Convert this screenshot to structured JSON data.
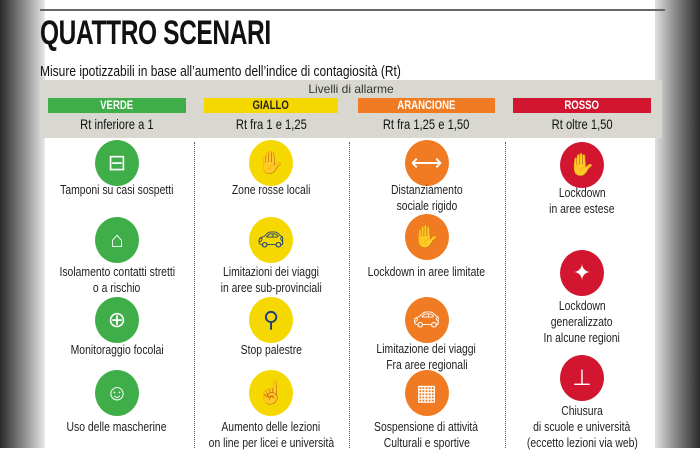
{
  "title": "QUATTRO SCENARI",
  "subtitle": "Misure ipotizzabili in base all’aumento dell’indice di contagiosità (Rt)",
  "levels_label": "Livelli di allarme",
  "colors": {
    "verde": "#3fae49",
    "giallo": "#f5d800",
    "arancione": "#f07b22",
    "rosso": "#d2162f"
  },
  "columns": [
    {
      "name": "VERDE",
      "rt": "Rt inferiore a 1",
      "items": [
        {
          "icon": "syringe-icon",
          "l1": "Tamponi su casi sospetti",
          "l2": ""
        },
        {
          "icon": "home-isolation-icon",
          "l1": "Isolamento contatti stretti",
          "l2": "o a rischio"
        },
        {
          "icon": "target-icon",
          "l1": "Monitoraggio focolai",
          "l2": ""
        },
        {
          "icon": "face-mask-icon",
          "l1": "Uso delle mascherine",
          "l2": ""
        }
      ]
    },
    {
      "name": "GIALLO",
      "rt": "Rt fra 1 e 1,25",
      "items": [
        {
          "icon": "stop-hand-icon",
          "l1": "Zone rosse locali",
          "l2": ""
        },
        {
          "icon": "car-icon",
          "l1": "Limitazioni dei viaggi",
          "l2": "in aree sub-provinciali"
        },
        {
          "icon": "gym-people-icon",
          "l1": "Stop palestre",
          "l2": ""
        },
        {
          "icon": "pointing-hand-icon",
          "l1": "Aumento delle lezioni",
          "l2": "on line per licei e università"
        }
      ]
    },
    {
      "name": "ARANCIONE",
      "rt": "Rt fra 1,25 e 1,50",
      "items": [
        {
          "icon": "social-distance-icon",
          "l1": "Distanziamento",
          "l2": "sociale rigido"
        },
        {
          "icon": "stop-hand-icon",
          "l1": "Lockdown in aree limitate",
          "l2": ""
        },
        {
          "icon": "car-icon",
          "l1": "Limitazione dei viaggi",
          "l2": "Fra aree regionali"
        },
        {
          "icon": "arena-icon",
          "l1": "Sospensione di attività",
          "l2": "Culturali e sportive"
        }
      ]
    },
    {
      "name": "ROSSO",
      "rt": "Rt oltre 1,50",
      "items": [
        {
          "icon": "stop-hand-icon",
          "l1": "Lockdown",
          "l2": "in aree estese",
          "l3": ""
        },
        {
          "icon": "italy-map-icon",
          "l1": "Lockdown",
          "l2": "generalizzato",
          "l3": "In alcune regioni"
        },
        {
          "icon": "school-desk-icon",
          "l1": "Chiusura",
          "l2": "di scuole e università",
          "l3": "(eccetto lezioni via web)"
        }
      ]
    }
  ]
}
